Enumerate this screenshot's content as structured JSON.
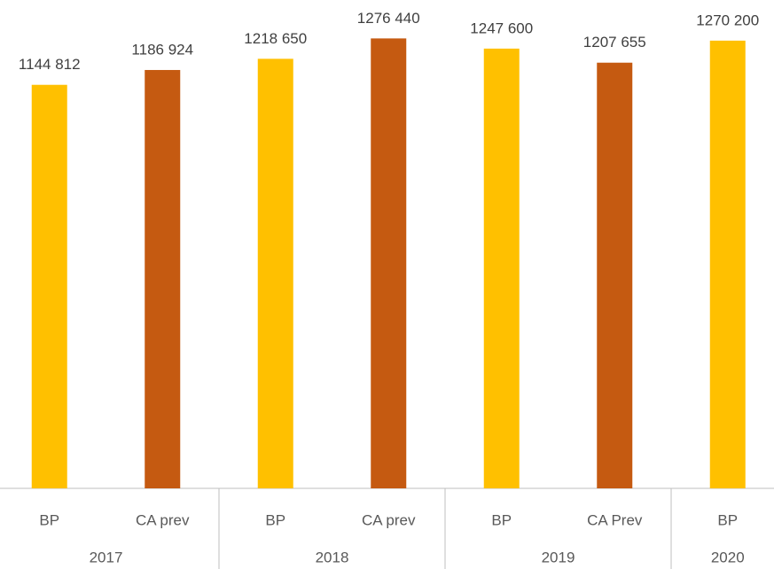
{
  "chart_data": {
    "type": "bar",
    "groups": [
      {
        "label": "2017",
        "categories": [
          "BP",
          "CA prev"
        ]
      },
      {
        "label": "2018",
        "categories": [
          "BP",
          "CA prev"
        ]
      },
      {
        "label": "2019",
        "categories": [
          "BP",
          "CA Prev"
        ]
      },
      {
        "label": "2020",
        "categories": [
          "BP"
        ]
      }
    ],
    "values": [
      1144812,
      1186924,
      1218650,
      1276440,
      1247600,
      1207655,
      1270200
    ],
    "value_labels": [
      "1144 812",
      "1186 924",
      "1218 650",
      "1276 440",
      "1247 600",
      "1207 655",
      "1270 200"
    ],
    "colors": [
      "#ffc000",
      "#c55a11",
      "#ffc000",
      "#c55a11",
      "#ffc000",
      "#c55a11",
      "#ffc000"
    ],
    "ylim": [
      0,
      1300000
    ],
    "grid": false
  }
}
